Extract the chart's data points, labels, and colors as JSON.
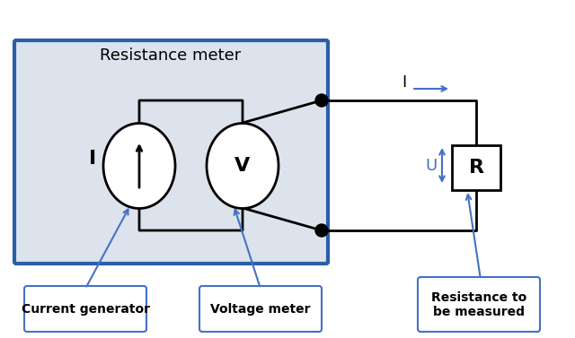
{
  "bg_color": "#ffffff",
  "meter_box_color": "#dde3ec",
  "meter_box_border": "#2b5fa8",
  "wire_color": "#000000",
  "arrow_color": "#4472c4",
  "dot_color": "#000000",
  "resistor_fill": "#ffffff",
  "resistor_border": "#000000",
  "label_box_color": "#ffffff",
  "label_box_border": "#4472c4",
  "title": "Resistance meter",
  "label_current_gen": "Current generator",
  "label_voltage_meter": "Voltage meter",
  "label_resistance": "Resistance to\nbe measured",
  "label_I": "I",
  "label_V": "V",
  "label_R": "R",
  "label_U": "U",
  "label_I_top": "I"
}
